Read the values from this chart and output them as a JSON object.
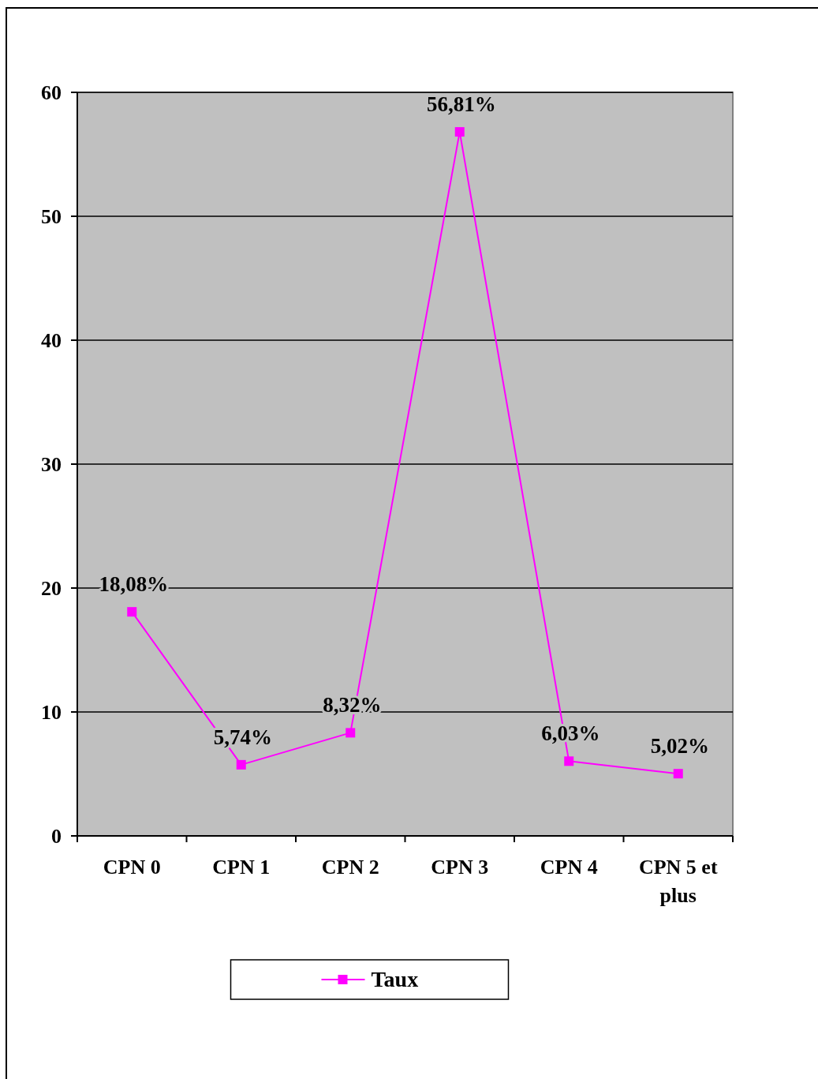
{
  "chart_data": {
    "type": "line",
    "categories": [
      "CPN 0",
      "CPN 1",
      "CPN 2",
      "CPN 3",
      "CPN 4",
      "CPN 5 et plus"
    ],
    "series": [
      {
        "name": "Taux",
        "color": "#ff00ff",
        "values": [
          18.08,
          5.74,
          8.32,
          56.81,
          6.03,
          5.02
        ],
        "value_labels": [
          "18,08%",
          "5,74%",
          "8,32%",
          "56,81%",
          "6,03%",
          "5,02%"
        ]
      }
    ],
    "ylim": [
      0,
      60
    ],
    "yticks": [
      0,
      10,
      20,
      30,
      40,
      50,
      60
    ],
    "grid": "y",
    "legend": "bottom",
    "marker": "square",
    "line_style": "solid"
  }
}
